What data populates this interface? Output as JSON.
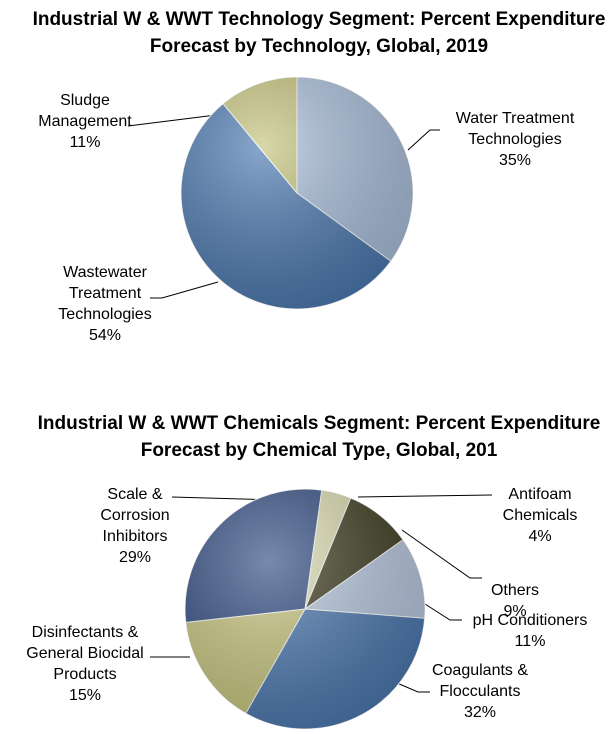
{
  "chart_data": [
    {
      "type": "pie",
      "title": "Industrial W & WWT Technology Segment: Percent Expenditure Forecast by Technology, Global, 2019",
      "categories": [
        "Water Treatment Technologies",
        "Wastewater Treatment Technologies",
        "Sludge Management"
      ],
      "values": [
        35,
        54,
        11
      ],
      "value_labels": [
        "35%",
        "54%",
        "11%"
      ],
      "colors": [
        "#a9bfdc",
        "#4a78b0",
        "#c4c27a"
      ]
    },
    {
      "type": "pie",
      "title": "Industrial W & WWT Chemicals Segment: Percent Expenditure Forecast by Chemical Type, Global, 201",
      "categories": [
        "Antifoam Chemicals",
        "Others",
        "pH Conditioners",
        "Coagulants & Flocculants",
        "Disinfectants & General Biocidal Products",
        "Scale & Corrosion Inhibitors"
      ],
      "values": [
        4,
        9,
        11,
        32,
        15,
        29
      ],
      "value_labels": [
        "4%",
        "9%",
        "11%",
        "32%",
        "15%",
        "29%"
      ],
      "colors": [
        "#dcdcb0",
        "#3b3b1e",
        "#b8c8e0",
        "#4a78b0",
        "#c8c67e",
        "#2f4a80"
      ]
    }
  ]
}
